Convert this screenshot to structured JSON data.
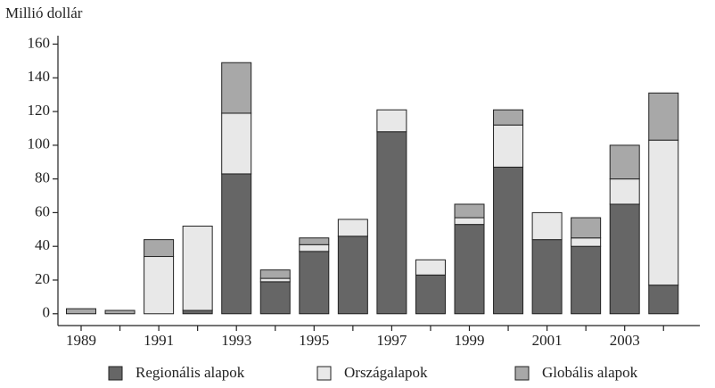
{
  "chart_data": {
    "type": "stacked_bar",
    "y_label": "Millió dollár",
    "categories": [
      "1989",
      null,
      "1991",
      null,
      "1993",
      null,
      "1995",
      null,
      "1997",
      null,
      "1999",
      null,
      "2001",
      null,
      "2003",
      null
    ],
    "series": [
      {
        "name": "Regionális alapok",
        "color": "#666666",
        "values": [
          0,
          0,
          0,
          2,
          83,
          19,
          37,
          46,
          108,
          23,
          53,
          87,
          44,
          40,
          65,
          17
        ]
      },
      {
        "name": "Országalapok",
        "color": "#e8e8e8",
        "values": [
          0,
          0,
          34,
          50,
          36,
          2,
          4,
          10,
          13,
          9,
          4,
          25,
          16,
          5,
          15,
          86
        ]
      },
      {
        "name": "Globális alapok",
        "color": "#a8a8a8",
        "values": [
          3,
          2,
          10,
          0,
          30,
          5,
          4,
          0,
          0,
          0,
          8,
          9,
          0,
          12,
          20,
          28
        ]
      }
    ],
    "ylim": [
      -7,
      165
    ],
    "yticks": [
      0,
      20,
      40,
      60,
      80,
      100,
      120,
      140,
      160
    ],
    "legend": "bottom"
  }
}
